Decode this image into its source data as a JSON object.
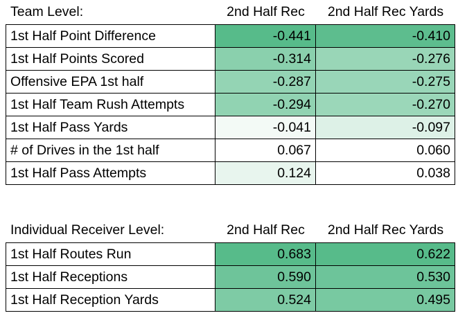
{
  "team": {
    "header": {
      "label": "Team Level:",
      "col1": "2nd Half Rec",
      "col2": "2nd Half Rec Yards"
    },
    "rows": [
      {
        "label": "1st Half Point Difference",
        "v1": "-0.441",
        "v2": "-0.410",
        "bg1": "#57bb8a",
        "bg2": "#5dbd8e"
      },
      {
        "label": "1st Half Points Scored",
        "v1": "-0.314",
        "v2": "-0.276",
        "bg1": "#8ad0ad",
        "bg2": "#99d6b7"
      },
      {
        "label": "Offensive EPA 1st half",
        "v1": "-0.287",
        "v2": "-0.275",
        "bg1": "#94d4b4",
        "bg2": "#99d6b8"
      },
      {
        "label": "1st Half Team Rush Attempts",
        "v1": "-0.294",
        "v2": "-0.270",
        "bg1": "#91d3b2",
        "bg2": "#9bd7b9"
      },
      {
        "label": "1st Half Pass Yards",
        "v1": "-0.041",
        "v2": "-0.097",
        "bg1": "#f3faf6",
        "bg2": "#ddf1e7"
      },
      {
        "label": "# of Drives in the 1st half",
        "v1": "0.067",
        "v2": "0.060",
        "bg1": "#ffffff",
        "bg2": "#ffffff"
      },
      {
        "label": "1st Half Pass Attempts",
        "v1": "0.124",
        "v2": "0.038",
        "bg1": "#e8f5ee",
        "bg2": "#ffffff"
      }
    ]
  },
  "receiver": {
    "header": {
      "label": "Individual Receiver Level:",
      "col1": "2nd Half Rec",
      "col2": "2nd Half Rec Yards"
    },
    "rows": [
      {
        "label": "1st Half Routes Run",
        "v1": "0.683",
        "v2": "0.622",
        "bg1": "#57bb8a",
        "bg2": "#57bb8a"
      },
      {
        "label": "1st Half Receptions",
        "v1": "0.590",
        "v2": "0.530",
        "bg1": "#6ec49a",
        "bg2": "#6dc49a"
      },
      {
        "label": "1st Half Reception Yards",
        "v1": "0.524",
        "v2": "0.495",
        "bg1": "#7ecbA5",
        "bg2": "#78c9a1"
      }
    ]
  }
}
